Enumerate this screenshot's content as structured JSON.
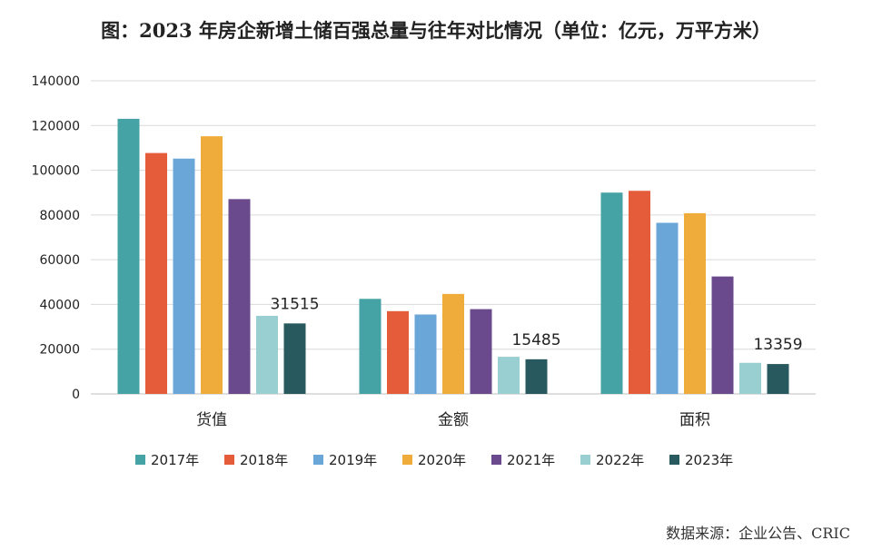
{
  "title": "图：2023 年房企新增土储百强总量与往年对比情况（单位：亿元，万平方米）",
  "source": "数据来源：企业公告、CRIC",
  "chart_data": {
    "type": "bar",
    "title": "图：2023 年房企新增土储百强总量与往年对比情况（单位：亿元，万平方米）",
    "categories": [
      "货值",
      "金额",
      "面积"
    ],
    "ylim": [
      0,
      140000
    ],
    "yticks": [
      0,
      20000,
      40000,
      60000,
      80000,
      100000,
      120000,
      140000
    ],
    "grid": true,
    "legend": "bottom",
    "series": [
      {
        "name": "2017年",
        "color": "#45A3A6",
        "values": [
          123000,
          42500,
          90000
        ]
      },
      {
        "name": "2018年",
        "color": "#E45C3A",
        "values": [
          107700,
          37000,
          90800
        ]
      },
      {
        "name": "2019年",
        "color": "#6AA6D8",
        "values": [
          105200,
          35500,
          76500
        ]
      },
      {
        "name": "2020年",
        "color": "#F0AC3A",
        "values": [
          115200,
          44700,
          80800
        ]
      },
      {
        "name": "2021年",
        "color": "#6A4A8C",
        "values": [
          87100,
          37900,
          52500
        ]
      },
      {
        "name": "2022年",
        "color": "#9ACFD1",
        "values": [
          34900,
          16600,
          13900
        ]
      },
      {
        "name": "2023年",
        "color": "#27595E",
        "values": [
          31515,
          15485,
          13359
        ]
      }
    ],
    "data_labels": [
      {
        "series": "2023年",
        "category": "货值",
        "text": "31515"
      },
      {
        "series": "2023年",
        "category": "金额",
        "text": "15485"
      },
      {
        "series": "2023年",
        "category": "面积",
        "text": "13359"
      }
    ]
  }
}
